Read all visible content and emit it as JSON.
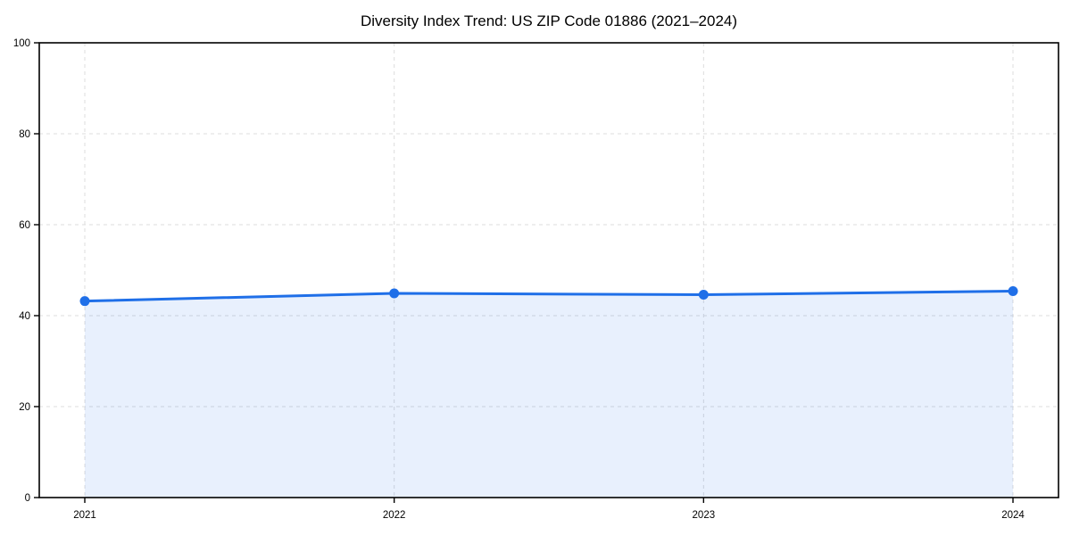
{
  "chart_data": {
    "type": "area",
    "title": "Diversity Index Trend: US ZIP Code 01886 (2021–2024)",
    "categories": [
      "2021",
      "2022",
      "2023",
      "2024"
    ],
    "series": [
      {
        "name": "Diversity Index",
        "values": [
          43.2,
          44.9,
          44.6,
          45.4
        ]
      }
    ],
    "xlabel": "",
    "ylabel": "",
    "ylim": [
      0,
      100
    ],
    "yticks": [
      0,
      20,
      40,
      60,
      80,
      100
    ],
    "grid": "dashed-both-axes",
    "legend_position": "none",
    "colors": {
      "line": "#1f6fe8",
      "marker": "#1f6fe8",
      "fill": "rgba(31,111,232,0.10)",
      "grid": "#dcdcdc",
      "axis": "#000000",
      "text": "#000000",
      "background": "#ffffff"
    }
  }
}
